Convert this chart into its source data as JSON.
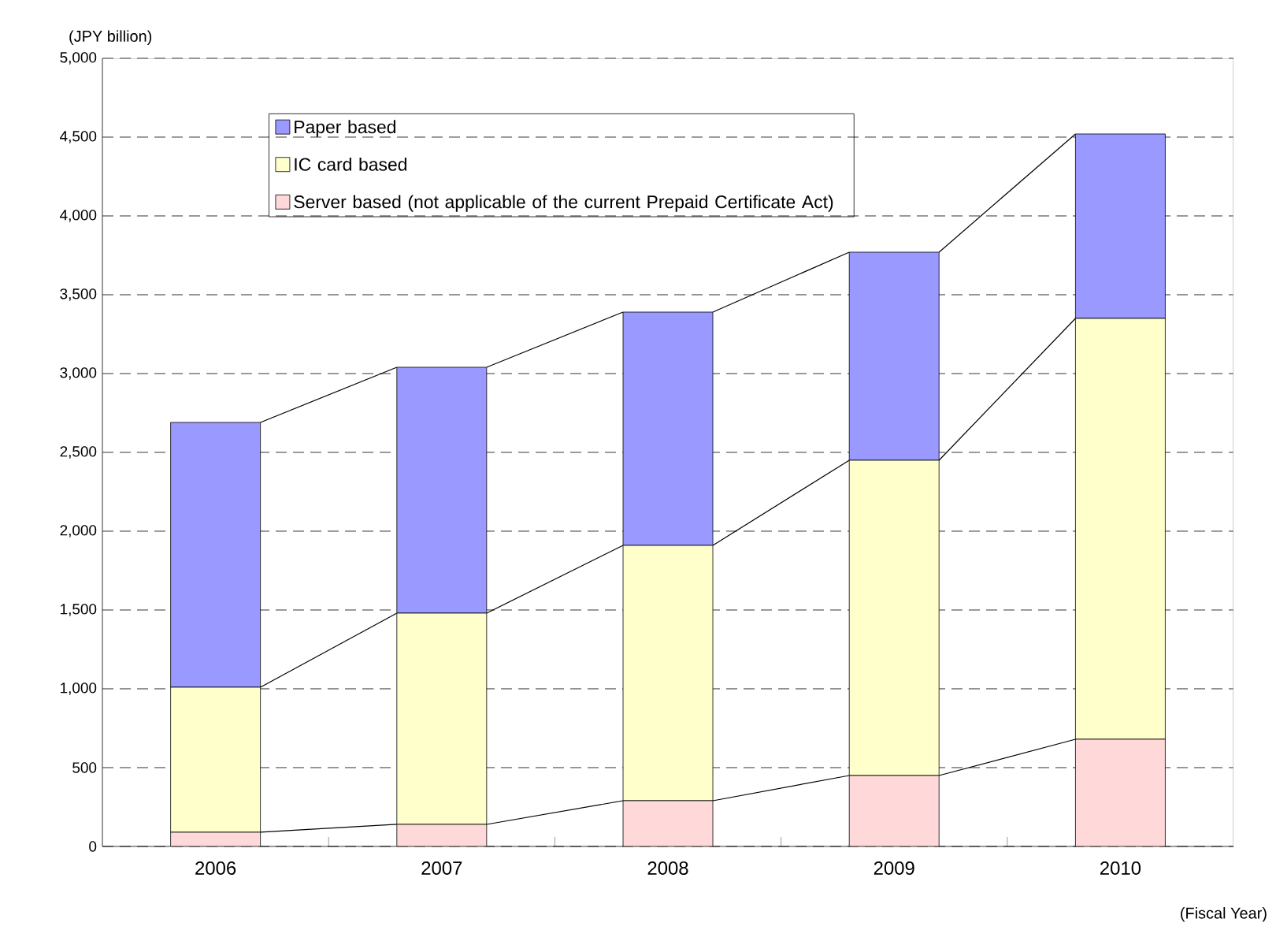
{
  "chart_data": {
    "type": "bar",
    "stacked": true,
    "categories": [
      "2006",
      "2007",
      "2008",
      "2009",
      "2010"
    ],
    "series": [
      {
        "name": "Server based (not applicable of the current Prepaid Certificate Act)",
        "color": "#ffd9d9",
        "values": [
          90,
          140,
          290,
          450,
          680
        ]
      },
      {
        "name": "IC card based",
        "color": "#ffffcc",
        "values": [
          920,
          1340,
          1620,
          2000,
          2670
        ]
      },
      {
        "name": "Paper based",
        "color": "#9999ff",
        "values": [
          1680,
          1560,
          1480,
          1320,
          1170
        ]
      }
    ],
    "ylabel": "(JPY billion)",
    "xlabel": "(Fiscal Year)",
    "ylim": [
      0,
      5000
    ],
    "yticks": [
      0,
      500,
      {
        "value": 1000,
        "label": "1,000"
      },
      {
        "value": 1500,
        "label": "1,500"
      },
      {
        "value": 2000,
        "label": "2,000"
      },
      {
        "value": 2500,
        "label": "2,500"
      },
      {
        "value": 3000,
        "label": "3,000"
      },
      {
        "value": 3500,
        "label": "3,500"
      },
      {
        "value": 4000,
        "label": "4,000"
      },
      {
        "value": 4500,
        "label": "4,500"
      },
      {
        "value": 5000,
        "label": "5,000"
      }
    ],
    "grid": "y",
    "legend": "top left"
  }
}
